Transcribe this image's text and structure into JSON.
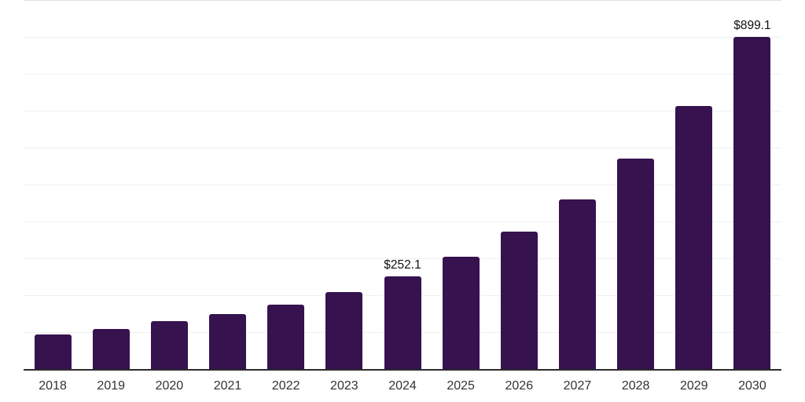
{
  "chart": {
    "background": "#ffffff",
    "bar_color": "#36124f",
    "grid_color": "#f0f0f0",
    "top_grid_color": "#e0e0e0",
    "axis_line_color": "#2b2b2b",
    "tick_label_color": "#333333",
    "value_label_color": "#111111"
  },
  "chart_data": {
    "type": "bar",
    "title": "",
    "xlabel": "",
    "ylabel": "",
    "categories": [
      "2018",
      "2019",
      "2020",
      "2021",
      "2022",
      "2023",
      "2024",
      "2025",
      "2026",
      "2027",
      "2028",
      "2029",
      "2030"
    ],
    "values": [
      93,
      109,
      129,
      150,
      174,
      209,
      252.1,
      305,
      373,
      460,
      570,
      713,
      899.1
    ],
    "point_labels": [
      "",
      "",
      "",
      "",
      "",
      "",
      "$252.1",
      "",
      "",
      "",
      "",
      "",
      "$899.1"
    ],
    "ylim": [
      0,
      1000
    ],
    "grid": "horizontal gridlines every 100 units, no y-axis tick labels",
    "legend": "none",
    "notes": "only 2024 and 2030 bars carry data labels"
  }
}
